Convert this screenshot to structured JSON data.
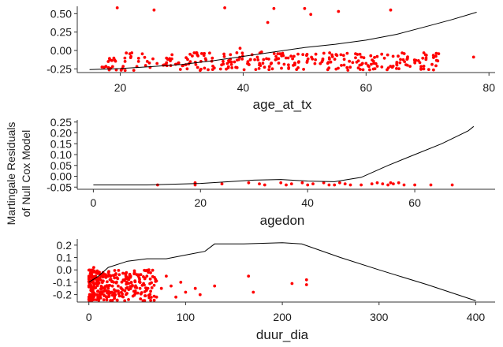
{
  "ylabel": [
    "Martingale Residuals",
    "of Null Cox Model"
  ],
  "chart_data": [
    {
      "type": "scatter",
      "xlabel": "age_at_tx",
      "xlim": [
        13,
        81
      ],
      "ylim": [
        -0.3,
        0.6
      ],
      "xticks": [
        20,
        40,
        60,
        80
      ],
      "yticks": [
        -0.25,
        0.0,
        0.25,
        0.5
      ],
      "ytick_labels": [
        "-0.25",
        "0.00",
        "0.25",
        "0.50"
      ],
      "point_color": "#ff0000",
      "line_color": "#000000",
      "seed": 11,
      "random_points": {
        "n": 300,
        "xmin": 17,
        "xmax": 72,
        "ymin": -0.27,
        "ymax": -0.03
      },
      "points": [
        [
          19.5,
          0.58
        ],
        [
          25.5,
          0.55
        ],
        [
          37,
          0.58
        ],
        [
          44,
          0.38
        ],
        [
          50,
          0.57
        ],
        [
          51,
          0.49
        ],
        [
          55.5,
          0.53
        ],
        [
          64,
          0.55
        ],
        [
          45,
          0.57
        ],
        [
          39.5,
          0.03
        ],
        [
          33,
          -0.27
        ],
        [
          43,
          -0.02
        ],
        [
          77.5,
          -0.09
        ],
        [
          27,
          -0.2
        ],
        [
          61,
          -0.13
        ]
      ],
      "smooth_line": [
        [
          15,
          -0.26
        ],
        [
          20,
          -0.245
        ],
        [
          25,
          -0.22
        ],
        [
          30,
          -0.19
        ],
        [
          35,
          -0.14
        ],
        [
          40,
          -0.08
        ],
        [
          45,
          -0.02
        ],
        [
          50,
          0.04
        ],
        [
          55,
          0.085
        ],
        [
          60,
          0.14
        ],
        [
          65,
          0.22
        ],
        [
          70,
          0.33
        ],
        [
          74,
          0.42
        ],
        [
          78,
          0.52
        ]
      ]
    },
    {
      "type": "scatter",
      "xlabel": "agedon",
      "xlim": [
        -3,
        75
      ],
      "ylim": [
        -0.06,
        0.26
      ],
      "xticks": [
        0,
        20,
        40,
        60
      ],
      "yticks": [
        -0.05,
        0.0,
        0.05,
        0.1,
        0.15,
        0.2,
        0.25
      ],
      "ytick_labels": [
        "-0.05",
        "0.00",
        "0.05",
        "0.10",
        "0.15",
        "0.20",
        "0.25"
      ],
      "point_color": "#ff0000",
      "line_color": "#000000",
      "seed": 7,
      "random_points": {
        "n": 0,
        "xmin": 0,
        "xmax": 1,
        "ymin": 0,
        "ymax": 1
      },
      "points": [
        [
          12,
          -0.04
        ],
        [
          19,
          -0.03
        ],
        [
          19,
          -0.04
        ],
        [
          24,
          -0.035
        ],
        [
          29,
          -0.03
        ],
        [
          31,
          -0.035
        ],
        [
          32,
          -0.04
        ],
        [
          35,
          -0.03
        ],
        [
          36,
          -0.04
        ],
        [
          37,
          -0.035
        ],
        [
          39,
          -0.03
        ],
        [
          40,
          -0.04
        ],
        [
          41,
          -0.035
        ],
        [
          43,
          -0.03
        ],
        [
          44,
          -0.04
        ],
        [
          45,
          -0.04
        ],
        [
          46,
          -0.03
        ],
        [
          47,
          -0.035
        ],
        [
          48,
          -0.04
        ],
        [
          50,
          -0.04
        ],
        [
          52,
          -0.035
        ],
        [
          53,
          -0.03
        ],
        [
          54,
          -0.035
        ],
        [
          55,
          -0.04
        ],
        [
          55.5,
          -0.03
        ],
        [
          56,
          -0.035
        ],
        [
          57,
          -0.03
        ],
        [
          58,
          -0.04
        ],
        [
          60,
          -0.04
        ],
        [
          63,
          -0.04
        ],
        [
          67,
          -0.04
        ]
      ],
      "smooth_line": [
        [
          0,
          -0.04
        ],
        [
          10,
          -0.04
        ],
        [
          20,
          -0.033
        ],
        [
          30,
          -0.018
        ],
        [
          35,
          -0.015
        ],
        [
          40,
          -0.022
        ],
        [
          45,
          -0.025
        ],
        [
          50,
          -0.005
        ],
        [
          55,
          0.05
        ],
        [
          60,
          0.1
        ],
        [
          65,
          0.15
        ],
        [
          70,
          0.21
        ],
        [
          71,
          0.23
        ]
      ]
    },
    {
      "type": "scatter",
      "xlabel": "duur_dia",
      "xlim": [
        -12,
        420
      ],
      "ylim": [
        -0.26,
        0.25
      ],
      "xticks": [
        0,
        100,
        200,
        300,
        400
      ],
      "yticks": [
        -0.2,
        -0.1,
        0.0,
        0.1,
        0.2
      ],
      "ytick_labels": [
        "-0.2",
        "-0.1",
        "0.0",
        "0.1",
        "0.2"
      ],
      "point_color": "#ff0000",
      "line_color": "#000000",
      "seed": 3,
      "random_points": {
        "n": 320,
        "xmin": 0,
        "xmax": 70,
        "ymin": -0.25,
        "ymax": -0.0,
        "skew": 1.6
      },
      "points": [
        [
          75,
          -0.15
        ],
        [
          80,
          -0.05
        ],
        [
          85,
          -0.13
        ],
        [
          90,
          -0.22
        ],
        [
          95,
          -0.1
        ],
        [
          100,
          -0.18
        ],
        [
          110,
          -0.15
        ],
        [
          115,
          -0.2
        ],
        [
          130,
          -0.13
        ],
        [
          165,
          -0.05
        ],
        [
          170,
          -0.18
        ],
        [
          210,
          -0.11
        ],
        [
          225,
          -0.12
        ],
        [
          225,
          -0.08
        ],
        [
          5,
          0.02
        ],
        [
          3,
          -0.04
        ],
        [
          60,
          -0.05
        ],
        [
          70,
          -0.22
        ]
      ],
      "smooth_line": [
        [
          0,
          -0.1
        ],
        [
          10,
          -0.05
        ],
        [
          20,
          0.02
        ],
        [
          40,
          0.07
        ],
        [
          60,
          0.09
        ],
        [
          80,
          0.09
        ],
        [
          100,
          0.12
        ],
        [
          120,
          0.15
        ],
        [
          130,
          0.21
        ],
        [
          160,
          0.21
        ],
        [
          200,
          0.22
        ],
        [
          220,
          0.21
        ],
        [
          260,
          0.1
        ],
        [
          300,
          0.0
        ],
        [
          350,
          -0.12
        ],
        [
          400,
          -0.25
        ]
      ]
    }
  ]
}
